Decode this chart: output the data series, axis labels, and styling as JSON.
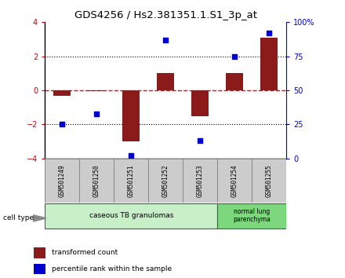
{
  "title": "GDS4256 / Hs2.381351.1.S1_3p_at",
  "samples": [
    "GSM501249",
    "GSM501250",
    "GSM501251",
    "GSM501252",
    "GSM501253",
    "GSM501254",
    "GSM501255"
  ],
  "red_bars": [
    -0.3,
    -0.05,
    -3.0,
    1.0,
    -1.5,
    1.0,
    3.1
  ],
  "blue_squares": [
    25,
    33,
    2,
    87,
    13,
    75,
    92
  ],
  "ylim_left": [
    -4,
    4
  ],
  "ylim_right": [
    0,
    100
  ],
  "yticks_left": [
    -4,
    -2,
    0,
    2,
    4
  ],
  "ytick_labels_right": [
    "0",
    "25",
    "50",
    "75",
    "100%"
  ],
  "group1_label": "caseous TB granulomas",
  "group1_count": 5,
  "group2_label": "normal lung\nparenchyma",
  "group2_count": 2,
  "group1_color": "#c8f0c8",
  "group2_color": "#7dd87d",
  "legend_red_label": "transformed count",
  "legend_blue_label": "percentile rank within the sample",
  "cell_type_label": "cell type",
  "bar_color": "#8b1a1a",
  "square_color": "#0000cc",
  "bar_width": 0.5,
  "title_fontsize": 9.5,
  "tick_fontsize": 7,
  "sample_box_color": "#cccccc",
  "ytick_color_left": "#cc0000",
  "ytick_color_right": "#0000cc"
}
